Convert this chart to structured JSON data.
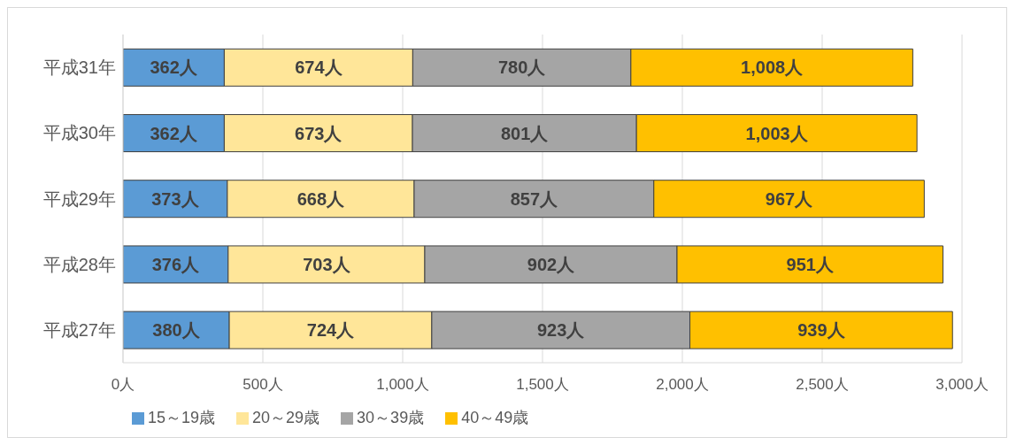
{
  "chart_data": {
    "type": "bar",
    "orientation": "horizontal",
    "stacked": true,
    "categories": [
      "平成31年",
      "平成30年",
      "平成29年",
      "平成28年",
      "平成27年"
    ],
    "series": [
      {
        "name": "15～19歳",
        "color": "#5b9bd5",
        "values": [
          362,
          362,
          373,
          376,
          380
        ],
        "value_labels": [
          "362人",
          "362人",
          "373人",
          "376人",
          "380人"
        ]
      },
      {
        "name": "20～29歳",
        "color": "#ffe699",
        "values": [
          674,
          673,
          668,
          703,
          724
        ],
        "value_labels": [
          "674人",
          "673人",
          "668人",
          "703人",
          "724人"
        ]
      },
      {
        "name": "30～39歳",
        "color": "#a5a5a5",
        "values": [
          780,
          801,
          857,
          902,
          923
        ],
        "value_labels": [
          "780人",
          "801人",
          "857人",
          "902人",
          "923人"
        ]
      },
      {
        "name": "40～49歳",
        "color": "#ffc000",
        "values": [
          1008,
          1003,
          967,
          951,
          939
        ],
        "value_labels": [
          "1,008人",
          "1,003人",
          "967人",
          "951人",
          "939人"
        ]
      }
    ],
    "xlim": [
      0,
      3000
    ],
    "xticks": [
      {
        "value": 0,
        "label": "0人"
      },
      {
        "value": 500,
        "label": "500人"
      },
      {
        "value": 1000,
        "label": "1,000人"
      },
      {
        "value": 1500,
        "label": "1,500人"
      },
      {
        "value": 2000,
        "label": "2,000人"
      },
      {
        "value": 2500,
        "label": "2,500人"
      },
      {
        "value": 3000,
        "label": "3,000人"
      }
    ],
    "grid": "x",
    "legend": "bottom left"
  }
}
